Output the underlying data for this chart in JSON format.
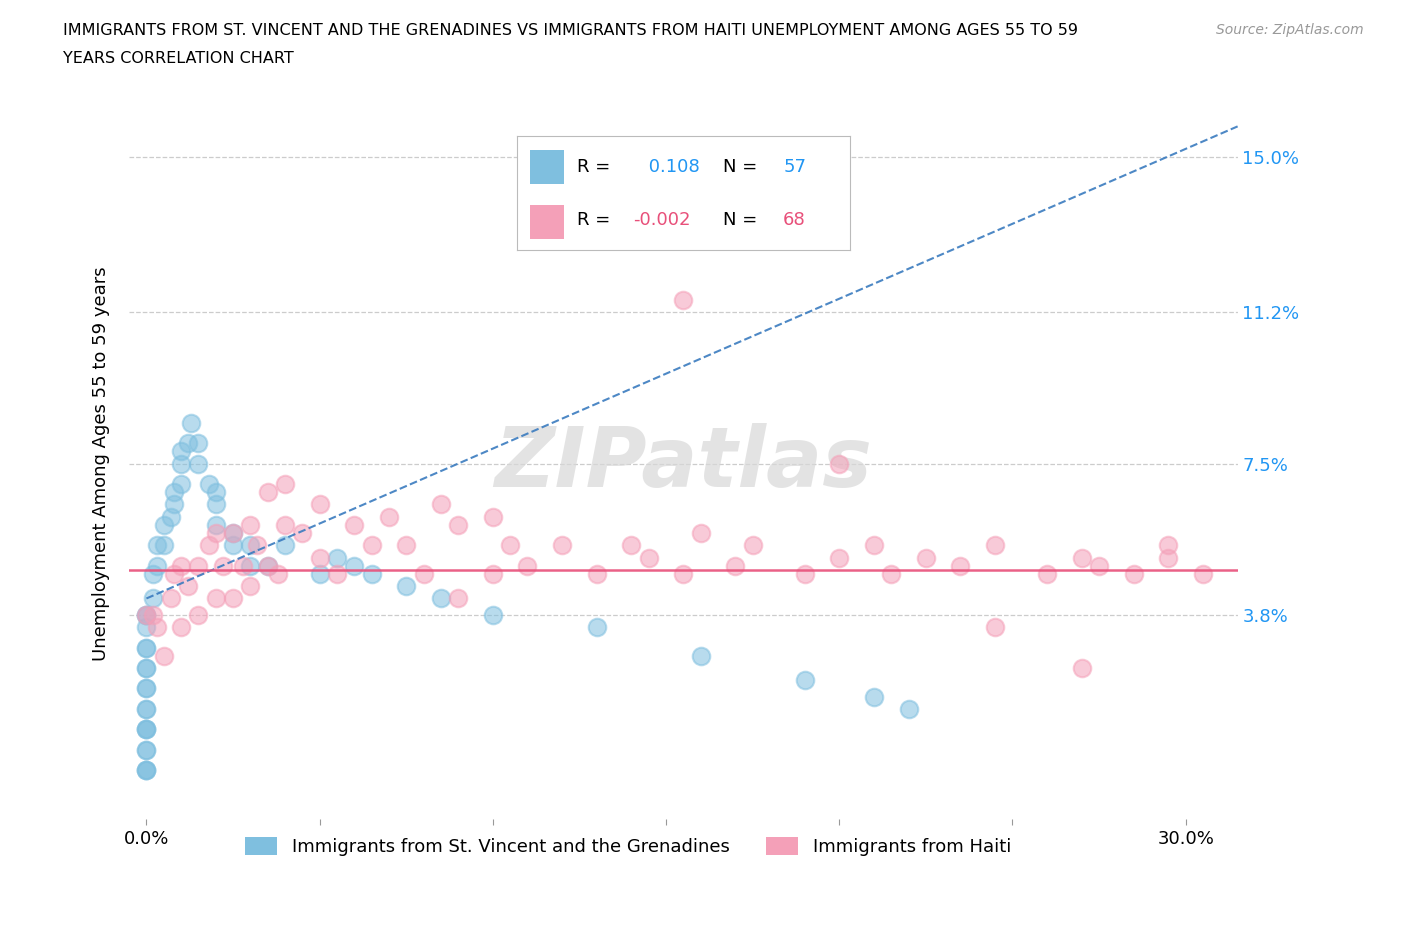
{
  "title": "IMMIGRANTS FROM ST. VINCENT AND THE GRENADINES VS IMMIGRANTS FROM HAITI UNEMPLOYMENT AMONG AGES 55 TO 59\nYEARS CORRELATION CHART",
  "source": "Source: ZipAtlas.com",
  "ylabel": "Unemployment Among Ages 55 to 59 years",
  "yticks": [
    0.0,
    0.038,
    0.075,
    0.112,
    0.15
  ],
  "ytick_labels": [
    "",
    "3.8%",
    "7.5%",
    "11.2%",
    "15.0%"
  ],
  "xticks": [
    0.0,
    0.05,
    0.1,
    0.15,
    0.2,
    0.25,
    0.3
  ],
  "xtick_labels": [
    "0.0%",
    "",
    "",
    "",
    "",
    "",
    "30.0%"
  ],
  "xlim": [
    -0.005,
    0.315
  ],
  "ylim": [
    -0.012,
    0.162
  ],
  "legend_label1": "Immigrants from St. Vincent and the Grenadines",
  "legend_label2": "Immigrants from Haiti",
  "R1": 0.108,
  "N1": 57,
  "R2": -0.002,
  "N2": 68,
  "color_blue": "#7fbfdf",
  "color_pink": "#f4a0b8",
  "color_blue_line": "#3a7bbf",
  "color_pink_line": "#e8507a",
  "watermark_color": "#d8d8d8",
  "blue_x": [
    0.0,
    0.0,
    0.0,
    0.0,
    0.0,
    0.0,
    0.0,
    0.0,
    0.0,
    0.0,
    0.0,
    0.0,
    0.0,
    0.0,
    0.0,
    0.0,
    0.0,
    0.0,
    0.0,
    0.002,
    0.002,
    0.003,
    0.003,
    0.005,
    0.005,
    0.007,
    0.008,
    0.008,
    0.01,
    0.01,
    0.01,
    0.012,
    0.013,
    0.015,
    0.015,
    0.018,
    0.02,
    0.02,
    0.02,
    0.025,
    0.025,
    0.03,
    0.03,
    0.035,
    0.04,
    0.05,
    0.055,
    0.06,
    0.065,
    0.075,
    0.085,
    0.1,
    0.13,
    0.16,
    0.19,
    0.21,
    0.22
  ],
  "blue_y": [
    0.0,
    0.0,
    0.0,
    0.005,
    0.005,
    0.01,
    0.01,
    0.01,
    0.015,
    0.015,
    0.02,
    0.02,
    0.025,
    0.025,
    0.03,
    0.03,
    0.035,
    0.038,
    0.038,
    0.042,
    0.048,
    0.05,
    0.055,
    0.055,
    0.06,
    0.062,
    0.065,
    0.068,
    0.07,
    0.075,
    0.078,
    0.08,
    0.085,
    0.075,
    0.08,
    0.07,
    0.068,
    0.065,
    0.06,
    0.058,
    0.055,
    0.05,
    0.055,
    0.05,
    0.055,
    0.048,
    0.052,
    0.05,
    0.048,
    0.045,
    0.042,
    0.038,
    0.035,
    0.028,
    0.022,
    0.018,
    0.015
  ],
  "pink_x": [
    0.0,
    0.002,
    0.003,
    0.005,
    0.007,
    0.008,
    0.01,
    0.01,
    0.012,
    0.015,
    0.015,
    0.018,
    0.02,
    0.02,
    0.022,
    0.025,
    0.025,
    0.028,
    0.03,
    0.03,
    0.032,
    0.035,
    0.035,
    0.038,
    0.04,
    0.04,
    0.045,
    0.05,
    0.05,
    0.055,
    0.06,
    0.065,
    0.07,
    0.075,
    0.08,
    0.085,
    0.09,
    0.09,
    0.1,
    0.1,
    0.105,
    0.11,
    0.12,
    0.13,
    0.14,
    0.145,
    0.155,
    0.16,
    0.17,
    0.175,
    0.19,
    0.2,
    0.21,
    0.215,
    0.225,
    0.235,
    0.245,
    0.26,
    0.27,
    0.275,
    0.285,
    0.295,
    0.305,
    0.155,
    0.2,
    0.245,
    0.27,
    0.295
  ],
  "pink_y": [
    0.038,
    0.038,
    0.035,
    0.028,
    0.042,
    0.048,
    0.035,
    0.05,
    0.045,
    0.038,
    0.05,
    0.055,
    0.042,
    0.058,
    0.05,
    0.042,
    0.058,
    0.05,
    0.045,
    0.06,
    0.055,
    0.05,
    0.068,
    0.048,
    0.06,
    0.07,
    0.058,
    0.052,
    0.065,
    0.048,
    0.06,
    0.055,
    0.062,
    0.055,
    0.048,
    0.065,
    0.042,
    0.06,
    0.048,
    0.062,
    0.055,
    0.05,
    0.055,
    0.048,
    0.055,
    0.052,
    0.048,
    0.058,
    0.05,
    0.055,
    0.048,
    0.052,
    0.055,
    0.048,
    0.052,
    0.05,
    0.055,
    0.048,
    0.052,
    0.05,
    0.048,
    0.052,
    0.048,
    0.115,
    0.075,
    0.035,
    0.025,
    0.055
  ]
}
